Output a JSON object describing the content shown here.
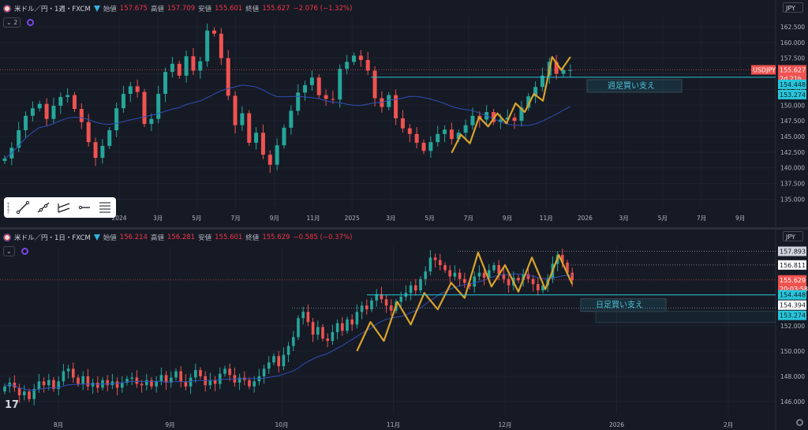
{
  "colors": {
    "bg": "#161a25",
    "grid": "#1f2330",
    "up": "#26a69a",
    "down": "#ef5350",
    "ma": "#2f4fb5",
    "zig": "#d9a32c",
    "support": "#26c6da",
    "axis": "#b2b5be"
  },
  "top": {
    "title": "米ドル／円・1週・FXCM",
    "open_label": "始値",
    "open": "157.675",
    "high_label": "高値",
    "high": "157.709",
    "low_label": "安値",
    "low": "155.601",
    "close_label": "終値",
    "close": "155.627",
    "change": "−2.076 (−1.32%)",
    "indicator_count": "2",
    "currency": "JPY",
    "badge_symbol": "USDJPY",
    "badge_price": "155.627",
    "badge_countdown": "2d 21h",
    "support_price": "154.448",
    "low_price_tag": "153.274",
    "support_label": "週足買い支え"
  },
  "bottom": {
    "title": "米ドル／円・1日・FXCM",
    "open_label": "始値",
    "open": "156.214",
    "high_label": "高値",
    "high": "156.281",
    "low_label": "安値",
    "low": "155.601",
    "close_label": "終値",
    "close": "155.629",
    "change": "−0.585 (−0.37%)",
    "currency": "JPY",
    "high_tag": "157.893",
    "mid_tag": "156.811",
    "badge_price": "155.629",
    "badge_countdown": "20:03:58",
    "support_price": "154.448",
    "support2_price": "154.394",
    "low_price_tag": "153.274",
    "support_label": "日足買い支え"
  },
  "chart_data": [
    {
      "type": "candlestick",
      "title": "米ドル／円・1週・FXCM",
      "yticks": [
        "162.500",
        "160.000",
        "157.500",
        "155.000",
        "152.500",
        "150.000",
        "147.500",
        "145.000",
        "142.500",
        "140.000",
        "137.500",
        "135.000"
      ],
      "ylim": [
        133.8,
        164.0
      ],
      "xticks": [
        "2024",
        "3月",
        "5月",
        "7月",
        "9月",
        "11月",
        "2025",
        "3月",
        "5月",
        "7月",
        "9月",
        "11月",
        "2026",
        "3月",
        "5月",
        "7月",
        "9月"
      ],
      "close_series": [
        141.5,
        143.2,
        146.0,
        148.3,
        149.5,
        150.2,
        147.8,
        149.9,
        151.3,
        151.6,
        149.4,
        147.3,
        144.1,
        141.6,
        143.5,
        146.0,
        149.5,
        151.8,
        153.0,
        152.1,
        147.0,
        147.8,
        151.8,
        155.3,
        156.6,
        154.7,
        157.8,
        155.5,
        157.0,
        161.9,
        161.4,
        157.5,
        151.5,
        146.8,
        148.7,
        144.0,
        145.6,
        142.1,
        140.5,
        143.6,
        146.4,
        149.1,
        152.0,
        153.2,
        154.4,
        151.6,
        151.0,
        150.9,
        155.8,
        156.9,
        157.9,
        157.2,
        155.5,
        151.1,
        149.7,
        151.6,
        147.9,
        146.3,
        145.4,
        144.0,
        142.7,
        144.1,
        145.4,
        146.1,
        144.6,
        145.6,
        146.8,
        148.3,
        147.7,
        148.9,
        147.3,
        147.7,
        148.0,
        147.5,
        149.6,
        151.4,
        152.9,
        154.7,
        156.9,
        155.0,
        155.6,
        155.6
      ],
      "zigzag": [
        142.4,
        145.3,
        143.9,
        148.1,
        146.6,
        148.7,
        147.1,
        150.3,
        148.9,
        151.8,
        150.7,
        157.7,
        155.6,
        157.7
      ]
    },
    {
      "type": "candlestick",
      "title": "米ドル／円・1日・FXCM",
      "yticks": [
        "152.000",
        "150.000",
        "148.000",
        "146.000"
      ],
      "ylim": [
        145.0,
        158.3
      ],
      "xticks": [
        "8月",
        "9月",
        "10月",
        "11月",
        "12月",
        "2026",
        "2月"
      ],
      "close_series": [
        147.2,
        147.5,
        147.1,
        146.5,
        146.8,
        146.2,
        147.0,
        147.6,
        147.3,
        147.7,
        147.0,
        147.6,
        148.4,
        148.6,
        147.9,
        147.4,
        148.0,
        147.2,
        147.5,
        147.1,
        147.7,
        147.3,
        147.6,
        147.1,
        147.5,
        147.8,
        147.9,
        147.4,
        147.3,
        147.7,
        147.2,
        147.6,
        148.1,
        147.5,
        147.9,
        148.4,
        147.6,
        147.2,
        147.9,
        148.5,
        148.0,
        147.3,
        147.7,
        147.4,
        148.2,
        148.6,
        148.1,
        147.5,
        147.9,
        147.7,
        147.2,
        147.6,
        148.0,
        148.6,
        149.1,
        149.6,
        148.8,
        149.7,
        150.4,
        151.1,
        152.6,
        153.1,
        152.3,
        151.3,
        151.9,
        151.0,
        150.8,
        151.5,
        152.2,
        151.6,
        152.5,
        152.1,
        153.1,
        153.6,
        153.3,
        154.0,
        154.5,
        154.1,
        153.6,
        153.2,
        153.9,
        154.3,
        154.6,
        155.2,
        154.8,
        155.7,
        156.3,
        157.4,
        157.2,
        156.8,
        156.4,
        155.9,
        156.2,
        155.7,
        155.4,
        155.1,
        155.9,
        156.2,
        155.8,
        156.4,
        156.8,
        156.1,
        155.7,
        155.2,
        155.8,
        155.6,
        156.1,
        155.7,
        155.3,
        154.8,
        155.2,
        155.7,
        156.9,
        157.6,
        157.0,
        156.2,
        155.6
      ],
      "zigzag": [
        150.0,
        152.3,
        150.8,
        153.9,
        152.1,
        154.6,
        153.3,
        155.4,
        154.2,
        157.8,
        155.1,
        156.8,
        154.7,
        157.4,
        154.9,
        157.6,
        155.3
      ]
    }
  ]
}
